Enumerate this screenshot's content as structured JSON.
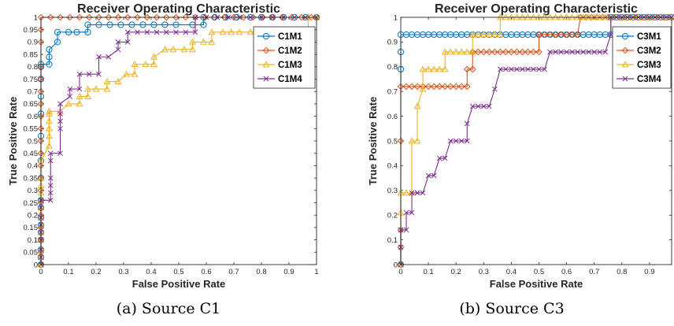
{
  "colors": {
    "m1": "#0072BD",
    "m2": "#D95319",
    "m3": "#EDB120",
    "m4": "#7E2F8E"
  },
  "chart_data": [
    {
      "type": "line",
      "title": "Receiver Operating Characteristic",
      "xlabel": "False Positive Rate",
      "ylabel": "True Positive Rate",
      "caption": "(a) Source C1",
      "xlim": [
        0,
        1
      ],
      "ylim": [
        0,
        1
      ],
      "xticks": [
        0,
        0.1,
        0.2,
        0.3,
        0.4,
        0.5,
        0.6,
        0.7,
        0.8,
        0.9,
        1
      ],
      "xtick_labels": [
        "0",
        "0.1",
        "0.2",
        "0.3",
        "0.4",
        "0.5",
        "0.6",
        "0.7",
        "0.8",
        "0.9",
        "1"
      ],
      "yticks": [
        0,
        0.05,
        0.1,
        0.15,
        0.2,
        0.25,
        0.3,
        0.35,
        0.4,
        0.45,
        0.5,
        0.55,
        0.6,
        0.65,
        0.7,
        0.75,
        0.8,
        0.85,
        0.9,
        0.95,
        1
      ],
      "ytick_labels": [
        "0",
        "0.05",
        "0.1",
        "0.15",
        "0.2",
        "0.25",
        "0.3",
        "0.35",
        "0.4",
        "0.45",
        "0.5",
        "0.55",
        "0.6",
        "0.65",
        "0.7",
        "0.75",
        "0.8",
        "0.85",
        "0.9",
        "0.95",
        "1"
      ],
      "grid": false,
      "legend_position": "top-right",
      "series": [
        {
          "name": "C1M1",
          "marker": "circle",
          "color_key": "m1",
          "x": [
            0,
            0,
            0,
            0,
            0,
            0,
            0,
            0,
            0,
            0,
            0,
            0,
            0,
            0,
            0,
            0,
            0,
            0.03,
            0.03,
            0.03,
            0.06,
            0.06,
            0.1,
            0.13,
            0.17,
            0.17,
            0.21,
            0.25,
            0.29,
            0.33,
            0.37,
            0.41,
            0.45,
            0.49,
            0.55,
            0.59,
            0.59,
            0.63,
            0.67,
            0.71,
            0.76,
            0.8,
            0.84,
            0.88,
            0.92,
            0.96,
            1
          ],
          "y": [
            0,
            0.03,
            0.06,
            0.1,
            0.13,
            0.16,
            0.19,
            0.23,
            0.26,
            0.35,
            0.42,
            0.52,
            0.61,
            0.68,
            0.75,
            0.8,
            0.81,
            0.81,
            0.84,
            0.87,
            0.9,
            0.94,
            0.94,
            0.94,
            0.94,
            0.97,
            0.97,
            0.97,
            0.97,
            0.97,
            0.97,
            0.97,
            0.97,
            0.97,
            0.97,
            0.97,
            1,
            1,
            1,
            1,
            1,
            1,
            1,
            1,
            1,
            1,
            1
          ]
        },
        {
          "name": "C1M2",
          "marker": "diamond",
          "color_key": "m2",
          "x": [
            0,
            0,
            0,
            0,
            0,
            0,
            0,
            0,
            0,
            0,
            0,
            0,
            0,
            0,
            0,
            0,
            0,
            0,
            0,
            0,
            0.035,
            0.07,
            0.105,
            0.14,
            0.175,
            0.21,
            0.245,
            0.28,
            0.315,
            0.35,
            0.385,
            0.42,
            0.455,
            0.49,
            0.525,
            0.56,
            0.595,
            0.63,
            0.665,
            0.7,
            0.735,
            0.77,
            0.805,
            0.84,
            0.875,
            0.91,
            0.945,
            0.98,
            1
          ],
          "y": [
            0,
            0.05,
            0.1,
            0.15,
            0.2,
            0.25,
            0.3,
            0.35,
            0.4,
            0.45,
            0.5,
            0.55,
            0.6,
            0.65,
            0.7,
            0.75,
            0.8,
            0.9,
            0.95,
            1,
            1,
            1,
            1,
            1,
            1,
            1,
            1,
            1,
            1,
            1,
            1,
            1,
            1,
            1,
            1,
            1,
            1,
            1,
            1,
            1,
            1,
            1,
            1,
            1,
            1,
            1,
            1,
            1,
            1
          ]
        },
        {
          "name": "C1M3",
          "marker": "triangle",
          "color_key": "m3",
          "x": [
            0,
            0,
            0,
            0,
            0,
            0,
            0,
            0,
            0,
            0,
            0,
            0,
            0,
            0.03,
            0.03,
            0.03,
            0.03,
            0.03,
            0.03,
            0.07,
            0.1,
            0.14,
            0.14,
            0.17,
            0.17,
            0.2,
            0.24,
            0.24,
            0.28,
            0.31,
            0.34,
            0.34,
            0.38,
            0.41,
            0.41,
            0.45,
            0.48,
            0.52,
            0.55,
            0.55,
            0.59,
            0.62,
            0.62,
            0.66,
            0.69,
            0.72,
            0.76,
            0.79,
            0.83,
            0.86,
            0.9,
            0.93,
            0.97,
            0.97,
            1
          ],
          "y": [
            0,
            0.03,
            0.06,
            0.1,
            0.13,
            0.16,
            0.19,
            0.23,
            0.26,
            0.29,
            0.32,
            0.35,
            0.42,
            0.48,
            0.52,
            0.55,
            0.58,
            0.61,
            0.62,
            0.62,
            0.65,
            0.65,
            0.68,
            0.68,
            0.71,
            0.71,
            0.71,
            0.74,
            0.74,
            0.77,
            0.77,
            0.81,
            0.81,
            0.81,
            0.84,
            0.87,
            0.87,
            0.87,
            0.87,
            0.9,
            0.9,
            0.9,
            0.94,
            0.94,
            0.94,
            0.94,
            0.94,
            0.94,
            0.94,
            0.94,
            0.94,
            0.94,
            0.94,
            1,
            1
          ]
        },
        {
          "name": "C1M4",
          "marker": "x",
          "color_key": "m4",
          "x": [
            0,
            0,
            0,
            0,
            0,
            0,
            0,
            0,
            0,
            0.035,
            0.035,
            0.035,
            0.035,
            0.035,
            0.035,
            0.07,
            0.07,
            0.07,
            0.07,
            0.07,
            0.105,
            0.105,
            0.14,
            0.14,
            0.175,
            0.21,
            0.21,
            0.245,
            0.28,
            0.28,
            0.315,
            0.315,
            0.35,
            0.385,
            0.42,
            0.455,
            0.49,
            0.525,
            0.56,
            0.56,
            0.6,
            0.64,
            0.68,
            0.72,
            0.76,
            0.8,
            0.84,
            0.88,
            0.92,
            0.96,
            1
          ],
          "y": [
            0,
            0.03,
            0.06,
            0.1,
            0.13,
            0.16,
            0.19,
            0.23,
            0.26,
            0.26,
            0.29,
            0.32,
            0.35,
            0.42,
            0.45,
            0.45,
            0.55,
            0.58,
            0.61,
            0.65,
            0.68,
            0.71,
            0.71,
            0.77,
            0.77,
            0.77,
            0.84,
            0.84,
            0.87,
            0.9,
            0.9,
            0.94,
            0.94,
            0.94,
            0.94,
            0.94,
            0.94,
            0.94,
            0.94,
            1,
            1,
            1,
            1,
            1,
            1,
            1,
            1,
            1,
            1,
            1,
            1
          ]
        }
      ]
    },
    {
      "type": "line",
      "title": "Receiver Operating Characteristic",
      "xlabel": "False Positive Rate",
      "ylabel": "True Positive Rate",
      "caption": "(b) Source C3",
      "xlim": [
        0,
        0.98
      ],
      "ylim": [
        0,
        1
      ],
      "xticks": [
        0,
        0.1,
        0.2,
        0.3,
        0.4,
        0.5,
        0.6,
        0.7,
        0.8,
        0.9
      ],
      "xtick_labels": [
        "0",
        "0.1",
        "0.2",
        "0.3",
        "0.4",
        "0.5",
        "0.6",
        "0.7",
        "0.8",
        "0.9"
      ],
      "yticks": [
        0,
        0.1,
        0.2,
        0.3,
        0.4,
        0.5,
        0.6,
        0.7,
        0.8,
        0.9,
        1
      ],
      "ytick_labels": [
        "0",
        "0.1",
        "0.2",
        "0.3",
        "0.4",
        "0.5",
        "0.6",
        "0.7",
        "0.8",
        "0.9",
        "1"
      ],
      "grid": false,
      "legend_position": "top-right",
      "series": [
        {
          "name": "C3M1",
          "marker": "circle",
          "color_key": "m1",
          "x": [
            0,
            0,
            0,
            0,
            0.02,
            0.04,
            0.06,
            0.08,
            0.1,
            0.12,
            0.14,
            0.16,
            0.18,
            0.2,
            0.22,
            0.24,
            0.26,
            0.28,
            0.3,
            0.32,
            0.34,
            0.36,
            0.38,
            0.4,
            0.42,
            0.44,
            0.46,
            0.48,
            0.5,
            0.52,
            0.54,
            0.56,
            0.58,
            0.6,
            0.62,
            0.64,
            0.66,
            0.68,
            0.7,
            0.72,
            0.74,
            0.76,
            0.76,
            0.78,
            0.8,
            0.82,
            0.84,
            0.86,
            0.88,
            0.9,
            0.92,
            0.94,
            0.96,
            0.98
          ],
          "y": [
            0,
            0.79,
            0.86,
            0.93,
            0.93,
            0.93,
            0.93,
            0.93,
            0.93,
            0.93,
            0.93,
            0.93,
            0.93,
            0.93,
            0.93,
            0.93,
            0.93,
            0.93,
            0.93,
            0.93,
            0.93,
            0.93,
            0.93,
            0.93,
            0.93,
            0.93,
            0.93,
            0.93,
            0.93,
            0.93,
            0.93,
            0.93,
            0.93,
            0.93,
            0.93,
            0.93,
            0.93,
            0.93,
            0.93,
            0.93,
            0.93,
            0.93,
            1,
            1,
            1,
            1,
            1,
            1,
            1,
            1,
            1,
            1,
            1,
            1
          ]
        },
        {
          "name": "C3M2",
          "marker": "diamond",
          "color_key": "m2",
          "x": [
            0,
            0,
            0,
            0,
            0,
            0.02,
            0.04,
            0.06,
            0.08,
            0.1,
            0.12,
            0.14,
            0.16,
            0.18,
            0.2,
            0.22,
            0.24,
            0.24,
            0.26,
            0.26,
            0.28,
            0.3,
            0.32,
            0.34,
            0.36,
            0.38,
            0.4,
            0.42,
            0.44,
            0.46,
            0.48,
            0.5,
            0.5,
            0.52,
            0.54,
            0.56,
            0.58,
            0.6,
            0.62,
            0.64,
            0.65,
            0.67,
            0.69,
            0.71,
            0.73,
            0.75,
            0.77,
            0.79,
            0.81,
            0.83,
            0.85,
            0.87,
            0.89,
            0.91,
            0.93,
            0.95,
            0.97
          ],
          "y": [
            0,
            0.07,
            0.14,
            0.5,
            0.72,
            0.72,
            0.72,
            0.72,
            0.72,
            0.72,
            0.72,
            0.72,
            0.72,
            0.72,
            0.72,
            0.72,
            0.72,
            0.79,
            0.79,
            0.86,
            0.86,
            0.86,
            0.86,
            0.86,
            0.86,
            0.86,
            0.86,
            0.86,
            0.86,
            0.86,
            0.86,
            0.86,
            0.93,
            0.93,
            0.93,
            0.93,
            0.93,
            0.93,
            0.93,
            0.93,
            1,
            1,
            1,
            1,
            1,
            1,
            1,
            1,
            1,
            1,
            1,
            1,
            1,
            1,
            1,
            1,
            1
          ]
        },
        {
          "name": "C3M3",
          "marker": "triangle",
          "color_key": "m3",
          "x": [
            0,
            0,
            0,
            0.02,
            0.04,
            0.04,
            0.06,
            0.06,
            0.08,
            0.08,
            0.1,
            0.12,
            0.14,
            0.16,
            0.16,
            0.18,
            0.2,
            0.22,
            0.24,
            0.26,
            0.26,
            0.28,
            0.3,
            0.32,
            0.34,
            0.36,
            0.36,
            0.38,
            0.4,
            0.42,
            0.44,
            0.46,
            0.48,
            0.5,
            0.52,
            0.54,
            0.56,
            0.58,
            0.6,
            0.62,
            0.64,
            0.66,
            0.68,
            0.7,
            0.72,
            0.74,
            0.76,
            0.78,
            0.8,
            0.82,
            0.84,
            0.86,
            0.88,
            0.9,
            0.92,
            0.94,
            0.96,
            0.98
          ],
          "y": [
            0,
            0.21,
            0.29,
            0.29,
            0.29,
            0.5,
            0.5,
            0.64,
            0.71,
            0.79,
            0.79,
            0.79,
            0.79,
            0.79,
            0.86,
            0.86,
            0.86,
            0.86,
            0.86,
            0.86,
            0.93,
            0.93,
            0.93,
            0.93,
            0.93,
            0.93,
            1,
            1,
            1,
            1,
            1,
            1,
            1,
            1,
            1,
            1,
            1,
            1,
            1,
            1,
            1,
            1,
            1,
            1,
            1,
            1,
            1,
            1,
            1,
            1,
            1,
            1,
            1,
            1,
            1,
            1,
            1,
            1
          ]
        },
        {
          "name": "C3M4",
          "marker": "x",
          "color_key": "m4",
          "x": [
            0,
            0,
            0,
            0.02,
            0.02,
            0.04,
            0.04,
            0.06,
            0.06,
            0.08,
            0.1,
            0.12,
            0.14,
            0.16,
            0.18,
            0.2,
            0.22,
            0.24,
            0.24,
            0.26,
            0.28,
            0.3,
            0.32,
            0.34,
            0.36,
            0.38,
            0.4,
            0.42,
            0.44,
            0.46,
            0.48,
            0.5,
            0.52,
            0.54,
            0.56,
            0.58,
            0.6,
            0.62,
            0.64,
            0.66,
            0.68,
            0.7,
            0.72,
            0.74,
            0.76,
            0.76,
            0.78,
            0.8,
            0.82,
            0.84,
            0.86,
            0.88,
            0.9,
            0.92,
            0.94,
            0.96,
            0.98
          ],
          "y": [
            0,
            0.07,
            0.14,
            0.14,
            0.21,
            0.21,
            0.29,
            0.29,
            0.29,
            0.29,
            0.36,
            0.36,
            0.43,
            0.43,
            0.5,
            0.5,
            0.5,
            0.5,
            0.57,
            0.64,
            0.64,
            0.64,
            0.64,
            0.71,
            0.79,
            0.79,
            0.79,
            0.79,
            0.79,
            0.79,
            0.79,
            0.79,
            0.79,
            0.86,
            0.86,
            0.86,
            0.86,
            0.86,
            0.86,
            0.86,
            0.86,
            0.86,
            0.86,
            0.86,
            0.93,
            1,
            1,
            1,
            1,
            1,
            1,
            1,
            1,
            1,
            1,
            1,
            1
          ]
        }
      ]
    }
  ]
}
